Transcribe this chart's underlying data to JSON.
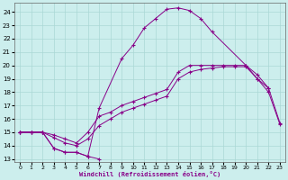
{
  "background_color": "#cceeed",
  "grid_color": "#aad8d6",
  "line_color": "#880088",
  "xlim": [
    -0.5,
    23.5
  ],
  "ylim": [
    12.8,
    24.7
  ],
  "yticks": [
    13,
    14,
    15,
    16,
    17,
    18,
    19,
    20,
    21,
    22,
    23,
    24
  ],
  "xticks": [
    0,
    1,
    2,
    3,
    4,
    5,
    6,
    7,
    8,
    9,
    10,
    11,
    12,
    13,
    14,
    15,
    16,
    17,
    18,
    19,
    20,
    21,
    22,
    23
  ],
  "xlabel": "Windchill (Refroidissement éolien,°C)",
  "curve_arch_x": [
    0,
    1,
    2,
    3,
    4,
    5,
    6,
    7,
    9,
    10,
    11,
    12,
    13,
    14,
    15,
    16,
    17,
    20,
    21,
    22
  ],
  "curve_arch_y": [
    15.0,
    15.0,
    15.0,
    13.8,
    13.5,
    13.5,
    13.2,
    16.8,
    20.5,
    21.5,
    22.8,
    23.5,
    24.2,
    24.3,
    24.1,
    23.5,
    22.5,
    20.0,
    19.0,
    18.3
  ],
  "curve_dip_x": [
    0,
    1,
    2,
    3,
    4,
    5,
    6,
    7
  ],
  "curve_dip_y": [
    15.0,
    15.0,
    15.0,
    13.8,
    13.5,
    13.5,
    13.2,
    13.0
  ],
  "line_upper_x": [
    0,
    1,
    2,
    3,
    4,
    5,
    6,
    7,
    8,
    9,
    10,
    11,
    12,
    13,
    14,
    15,
    16,
    17,
    18,
    19,
    20,
    21,
    22,
    23
  ],
  "line_upper_y": [
    15.0,
    15.0,
    15.0,
    14.8,
    14.5,
    14.2,
    15.0,
    16.2,
    16.5,
    17.0,
    17.3,
    17.6,
    17.9,
    18.2,
    19.5,
    20.0,
    20.0,
    20.0,
    20.0,
    20.0,
    20.0,
    19.3,
    18.3,
    15.7
  ],
  "line_lower_x": [
    0,
    1,
    2,
    3,
    4,
    5,
    6,
    7,
    8,
    9,
    10,
    11,
    12,
    13,
    14,
    15,
    16,
    17,
    18,
    19,
    20,
    21,
    22,
    23
  ],
  "line_lower_y": [
    15.0,
    15.0,
    15.0,
    14.6,
    14.2,
    14.0,
    14.5,
    15.5,
    16.0,
    16.5,
    16.8,
    17.1,
    17.4,
    17.7,
    19.0,
    19.5,
    19.7,
    19.8,
    19.9,
    19.9,
    19.9,
    19.0,
    18.0,
    15.6
  ]
}
